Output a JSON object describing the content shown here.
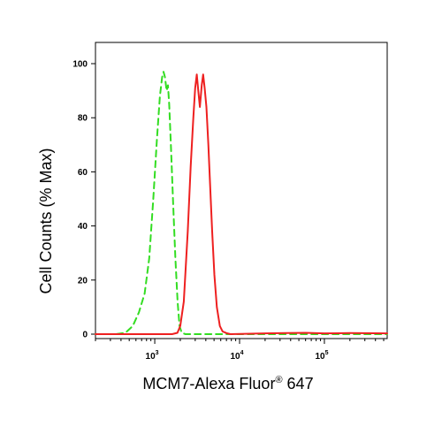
{
  "chart_data": {
    "type": "line",
    "title": "",
    "xlabel": "MCM7-Alexa Fluor",
    "xlabel_superscript": "®",
    "xlabel_suffix": " 647",
    "ylabel": "Cell Counts (% Max)",
    "x_scale": "log",
    "xlim": [
      200,
      550000
    ],
    "ylim": [
      0,
      104
    ],
    "x_ticks": [
      {
        "value": 1000,
        "base": "10",
        "exp": "3"
      },
      {
        "value": 10000,
        "base": "10",
        "exp": "4"
      },
      {
        "value": 100000,
        "base": "10",
        "exp": "5"
      }
    ],
    "y_ticks": [
      0,
      20,
      40,
      60,
      80,
      100
    ],
    "grid": false,
    "legend": "none",
    "series": [
      {
        "color": "#33dd22",
        "style": "dashed",
        "points": [
          [
            200,
            0
          ],
          [
            350,
            0
          ],
          [
            450,
            0.5
          ],
          [
            550,
            3
          ],
          [
            650,
            8
          ],
          [
            760,
            15
          ],
          [
            860,
            28
          ],
          [
            960,
            50
          ],
          [
            1060,
            72
          ],
          [
            1150,
            88
          ],
          [
            1220,
            95
          ],
          [
            1270,
            97
          ],
          [
            1320,
            95
          ],
          [
            1380,
            90
          ],
          [
            1430,
            92
          ],
          [
            1480,
            85
          ],
          [
            1550,
            70
          ],
          [
            1650,
            48
          ],
          [
            1750,
            28
          ],
          [
            1860,
            12
          ],
          [
            1960,
            3
          ],
          [
            2080,
            0.5
          ],
          [
            2300,
            0
          ],
          [
            550000,
            0
          ]
        ]
      },
      {
        "color": "#ee2020",
        "style": "solid",
        "points": [
          [
            200,
            0
          ],
          [
            1600,
            0
          ],
          [
            1850,
            0.5
          ],
          [
            2000,
            3
          ],
          [
            2200,
            12
          ],
          [
            2450,
            38
          ],
          [
            2650,
            62
          ],
          [
            2850,
            80
          ],
          [
            3000,
            91
          ],
          [
            3130,
            96
          ],
          [
            3260,
            90
          ],
          [
            3400,
            84
          ],
          [
            3580,
            92
          ],
          [
            3720,
            96
          ],
          [
            3870,
            91
          ],
          [
            4060,
            84
          ],
          [
            4280,
            70
          ],
          [
            4500,
            55
          ],
          [
            4750,
            38
          ],
          [
            5050,
            22
          ],
          [
            5400,
            10
          ],
          [
            5850,
            3
          ],
          [
            6300,
            1
          ],
          [
            7000,
            0.4
          ],
          [
            7800,
            0
          ],
          [
            20000,
            0.3
          ],
          [
            35000,
            0.4
          ],
          [
            60000,
            0.5
          ],
          [
            100000,
            0.3
          ],
          [
            200000,
            0.4
          ],
          [
            550000,
            0.3
          ]
        ]
      }
    ]
  }
}
